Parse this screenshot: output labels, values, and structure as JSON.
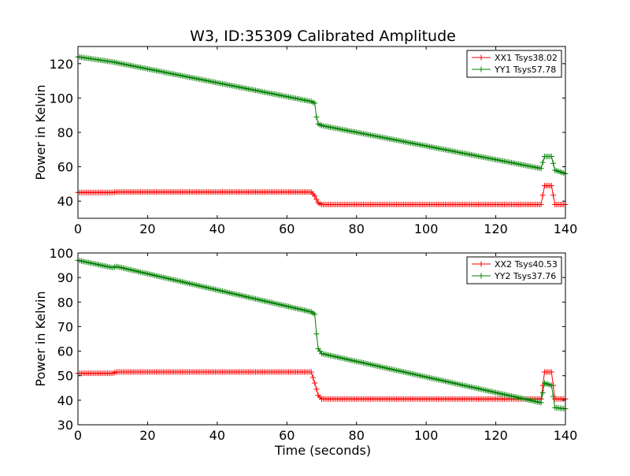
{
  "figure": {
    "title": "W3, ID:35309 Calibrated Amplitude",
    "xlabel": "Time (seconds)"
  },
  "chart_data": [
    {
      "type": "line",
      "title": "W3, ID:35309 Calibrated Amplitude",
      "xlabel": "",
      "ylabel": "Power in Kelvin",
      "xlim": [
        0,
        140
      ],
      "ylim": [
        30,
        130
      ],
      "xticks": [
        0,
        20,
        40,
        60,
        80,
        100,
        120,
        140
      ],
      "yticks": [
        40,
        60,
        80,
        100,
        120
      ],
      "legend_position": "top-right",
      "grid": false,
      "series": [
        {
          "name": "XX1 Tsys38.02",
          "color": "#ff0000",
          "marker": "+",
          "x": [
            0,
            10,
            11,
            67,
            68,
            69,
            70,
            133,
            134,
            136,
            137,
            140
          ],
          "y": [
            45,
            45,
            45.3,
            45.3,
            43,
            39,
            38,
            38,
            49,
            49,
            38,
            38
          ]
        },
        {
          "name": "YY1 Tsys57.78",
          "color": "#008000",
          "marker": "+",
          "x": [
            0,
            10,
            67,
            68,
            68.5,
            69,
            70,
            133,
            134,
            136,
            137,
            140
          ],
          "y": [
            124,
            121,
            98,
            97,
            89,
            85,
            84,
            59,
            66,
            66,
            58,
            56
          ]
        }
      ]
    },
    {
      "type": "line",
      "title": "",
      "xlabel": "Time (seconds)",
      "ylabel": "Power in Kelvin",
      "xlim": [
        0,
        140
      ],
      "ylim": [
        30,
        100
      ],
      "xticks": [
        0,
        20,
        40,
        60,
        80,
        100,
        120,
        140
      ],
      "yticks": [
        30,
        40,
        50,
        60,
        70,
        80,
        90,
        100
      ],
      "legend_position": "top-right",
      "grid": false,
      "series": [
        {
          "name": "XX2 Tsys40.53",
          "color": "#ff0000",
          "marker": "+",
          "x": [
            0,
            10,
            11,
            67,
            68,
            69,
            70,
            133,
            134,
            136,
            137,
            140
          ],
          "y": [
            51,
            51,
            51.5,
            51.5,
            47,
            42,
            40.5,
            40.5,
            51.5,
            51.5,
            40.5,
            40.5
          ]
        },
        {
          "name": "YY2 Tsys37.76",
          "color": "#008000",
          "marker": "+",
          "x": [
            0,
            10,
            11,
            67,
            68,
            68.5,
            69,
            70,
            133,
            134,
            136,
            137,
            140
          ],
          "y": [
            97,
            94,
            94.5,
            76,
            75,
            67,
            61,
            59,
            39,
            47,
            46,
            37,
            36.5
          ]
        }
      ]
    }
  ]
}
